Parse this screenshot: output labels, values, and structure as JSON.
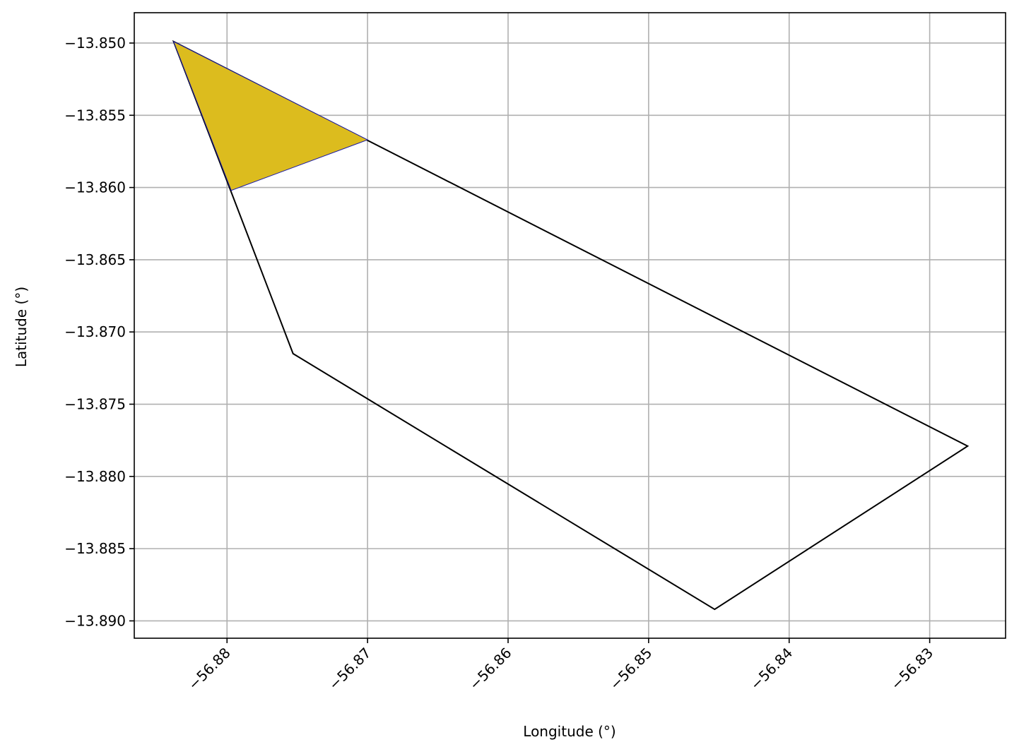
{
  "chart_data": {
    "type": "map",
    "title": "",
    "xlabel": "Longitude (°)",
    "ylabel": "Latitude (°)",
    "xlim": [
      -56.8866,
      -56.8246
    ],
    "ylim": [
      -13.8912,
      -13.8479
    ],
    "x_ticks": [
      {
        "value": -56.88,
        "label": "−56.88"
      },
      {
        "value": -56.87,
        "label": "−56.87"
      },
      {
        "value": -56.86,
        "label": "−56.86"
      },
      {
        "value": -56.85,
        "label": "−56.85"
      },
      {
        "value": -56.84,
        "label": "−56.84"
      },
      {
        "value": -56.83,
        "label": "−56.83"
      }
    ],
    "y_ticks": [
      {
        "value": -13.85,
        "label": "−13.850"
      },
      {
        "value": -13.855,
        "label": "−13.855"
      },
      {
        "value": -13.86,
        "label": "−13.860"
      },
      {
        "value": -13.865,
        "label": "−13.865"
      },
      {
        "value": -13.87,
        "label": "−13.870"
      },
      {
        "value": -13.875,
        "label": "−13.875"
      },
      {
        "value": -13.88,
        "label": "−13.880"
      },
      {
        "value": -13.885,
        "label": "−13.885"
      },
      {
        "value": -13.89,
        "label": "−13.890"
      }
    ],
    "grid": true,
    "polygons": [
      {
        "role": "boundary",
        "fill": "none",
        "stroke": "#000000",
        "points": [
          [
            -56.8838,
            -13.8499
          ],
          [
            -56.8273,
            -13.8779
          ],
          [
            -56.8453,
            -13.8892
          ],
          [
            -56.8753,
            -13.8715
          ],
          [
            -56.8838,
            -13.8499
          ]
        ]
      },
      {
        "role": "highlighted-area",
        "fill": "#dcbc1e",
        "stroke": "#1a1aa6",
        "points": [
          [
            -56.8838,
            -13.8499
          ],
          [
            -56.87,
            -13.8567
          ],
          [
            -56.8797,
            -13.8602
          ],
          [
            -56.8838,
            -13.8499
          ]
        ]
      }
    ]
  }
}
